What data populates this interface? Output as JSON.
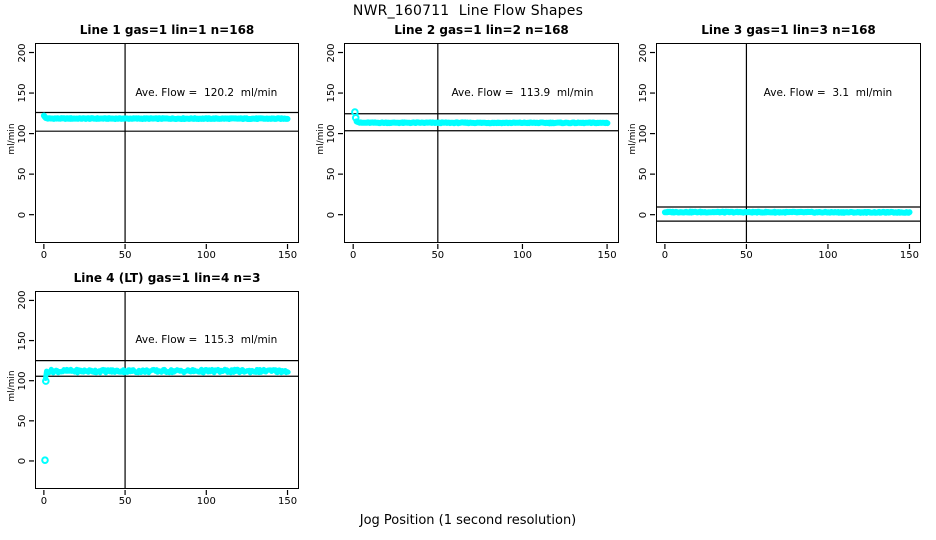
{
  "figure": {
    "title": "NWR_160711  Line Flow Shapes",
    "xlabel": "Jog Position (1 second resolution)"
  },
  "chart_data": {
    "type": "scatter",
    "title": "NWR_160711  Line Flow Shapes",
    "xlabel": "Jog Position (1 second resolution)",
    "ylabel": "ml/min",
    "xlim": [
      0,
      150
    ],
    "ylim": [
      0,
      200
    ],
    "x_tick_values": [
      0,
      50,
      100,
      150
    ],
    "x_tick_labels": [
      "0",
      "50",
      "100",
      "150"
    ],
    "y_tick_values": [
      200,
      150,
      100,
      50,
      0
    ],
    "y_tick_labels": [
      "200",
      "150",
      "100",
      "50",
      "0"
    ],
    "point_color": "#00FFFF",
    "line_color": "#000000",
    "marker": "open-circle",
    "vline_x": 50,
    "grid": false,
    "panels": [
      {
        "title": "Line 1 gas=1 lin=1 n=168",
        "gas": 1,
        "lin": 1,
        "n": 168,
        "ave_flow": 120.2,
        "ave_text": "Ave. Flow =  120.2  ml/min",
        "ref_line_upper": 126.0,
        "ref_line_lower": 103.0,
        "series": {
          "x_start": 0,
          "x_end": 150.5,
          "jitter": 0.5,
          "control": [
            [
              0,
              122.5
            ],
            [
              1,
              119.2
            ],
            [
              3,
              118.6
            ],
            [
              150.5,
              118.4
            ]
          ]
        },
        "extra_points": []
      },
      {
        "title": "Line 2 gas=1 lin=2 n=168",
        "gas": 1,
        "lin": 2,
        "n": 168,
        "ave_flow": 113.9,
        "ave_text": "Ave. Flow =  113.9  ml/min",
        "ref_line_upper": 124.5,
        "ref_line_lower": 103.5,
        "series": {
          "x_start": 2,
          "x_end": 150.5,
          "jitter": 0.5,
          "control": [
            [
              2,
              115.5
            ],
            [
              4,
              113.4
            ],
            [
              150.5,
              113.2
            ]
          ]
        },
        "extra_points": [
          [
            1,
            126.5
          ],
          [
            1.5,
            119.5
          ]
        ]
      },
      {
        "title": "Line 3 gas=1 lin=3 n=168",
        "gas": 1,
        "lin": 3,
        "n": 168,
        "ave_flow": 3.1,
        "ave_text": "Ave. Flow =  3.1  ml/min",
        "ref_line_upper": 9.5,
        "ref_line_lower": -8.0,
        "series": {
          "x_start": 0,
          "x_end": 150.5,
          "jitter": 0.55,
          "control": [
            [
              0,
              3.2
            ],
            [
              150.5,
              2.8
            ]
          ]
        },
        "extra_points": []
      },
      {
        "title": "Line 4 (LT) gas=1 lin=4 n=3",
        "gas": 1,
        "lin": 4,
        "n": 3,
        "ave_flow": 115.3,
        "ave_text": "Ave. Flow =  115.3  ml/min",
        "ref_line_upper": 125.0,
        "ref_line_lower": 105.5,
        "series": {
          "x_start": 1,
          "x_end": 150.5,
          "jitter": 2.3,
          "control": [
            [
              1,
              104
            ],
            [
              1.6,
              110.5
            ],
            [
              3,
              112
            ],
            [
              150.5,
              112
            ]
          ]
        },
        "extra_points": [
          [
            0.7,
            1.0
          ],
          [
            1.2,
            99.5
          ]
        ]
      }
    ]
  }
}
